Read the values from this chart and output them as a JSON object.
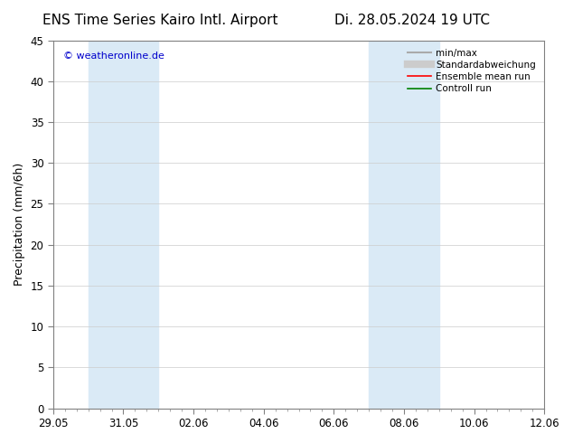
{
  "title_left": "ENS Time Series Kairo Intl. Airport",
  "title_right": "Di. 28.05.2024 19 UTC",
  "ylabel": "Precipitation (mm/6h)",
  "watermark": "© weatheronline.de",
  "ylim": [
    0,
    45
  ],
  "yticks": [
    0,
    5,
    10,
    15,
    20,
    25,
    30,
    35,
    40,
    45
  ],
  "xtick_labels": [
    "29.05",
    "31.05",
    "02.06",
    "04.06",
    "06.06",
    "08.06",
    "10.06",
    "12.06"
  ],
  "shade_bands": [
    {
      "xmin": 1.0,
      "xmax": 3.0
    },
    {
      "xmin": 9.0,
      "xmax": 11.0
    }
  ],
  "shade_color": "#daeaf6",
  "background_color": "#ffffff",
  "plot_bg_color": "#ffffff",
  "legend_items": [
    {
      "label": "min/max",
      "color": "#aaaaaa",
      "lw": 1.5,
      "style": "solid"
    },
    {
      "label": "Standardabweichung",
      "color": "#cccccc",
      "lw": 6,
      "style": "solid"
    },
    {
      "label": "Ensemble mean run",
      "color": "#ff0000",
      "lw": 1.2,
      "style": "solid"
    },
    {
      "label": "Controll run",
      "color": "#008000",
      "lw": 1.2,
      "style": "solid"
    }
  ],
  "watermark_color": "#0000cc",
  "title_fontsize": 11,
  "axis_fontsize": 9,
  "tick_fontsize": 8.5
}
